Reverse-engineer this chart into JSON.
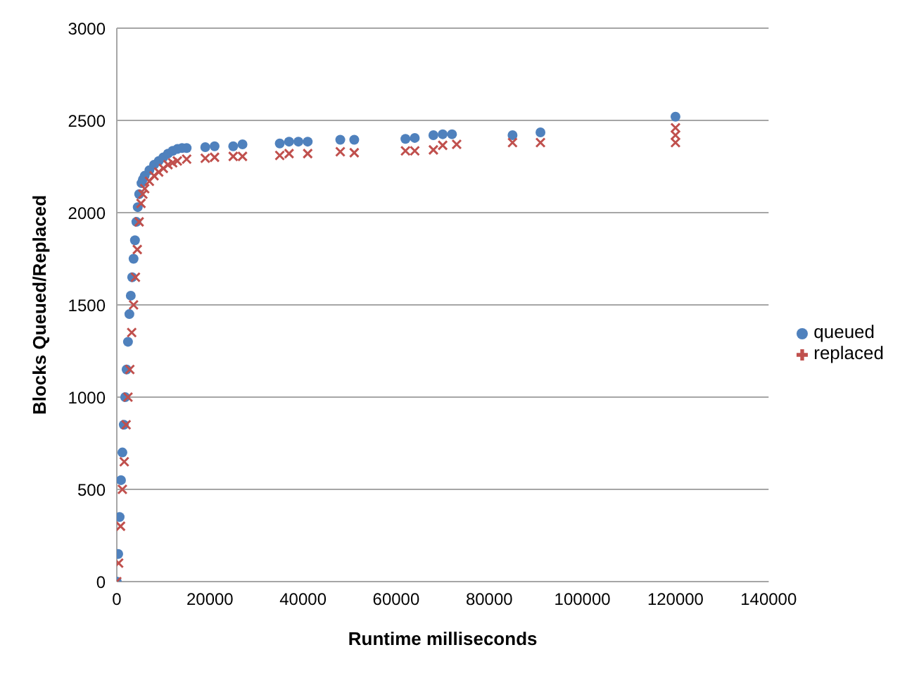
{
  "chart_data": {
    "type": "scatter",
    "xlabel": "Runtime milliseconds",
    "ylabel": "Blocks Queued/Replaced",
    "xlim": [
      0,
      140000
    ],
    "xticks": [
      0,
      20000,
      40000,
      60000,
      80000,
      100000,
      120000,
      140000
    ],
    "ylim": [
      0,
      3000
    ],
    "yticks": [
      0,
      500,
      1000,
      1500,
      2000,
      2500,
      3000
    ],
    "grid": "y",
    "legend": "right",
    "series": [
      {
        "name": "queued",
        "color": "#4f81bd",
        "marker": "circle",
        "x": [
          0,
          300,
          600,
          900,
          1200,
          1500,
          1800,
          2100,
          2400,
          2700,
          3000,
          3300,
          3600,
          3900,
          4200,
          4500,
          4800,
          5300,
          5600,
          6000,
          7000,
          8000,
          9000,
          10000,
          11000,
          12000,
          13000,
          14000,
          15000,
          19000,
          21000,
          25000,
          27000,
          35000,
          37000,
          39000,
          41000,
          48000,
          51000,
          62000,
          64000,
          68000,
          70000,
          72000,
          85000,
          91000,
          120000
        ],
        "values": [
          0,
          150,
          350,
          550,
          700,
          850,
          1000,
          1150,
          1300,
          1450,
          1550,
          1650,
          1750,
          1850,
          1950,
          2030,
          2100,
          2160,
          2180,
          2200,
          2230,
          2260,
          2280,
          2300,
          2320,
          2335,
          2345,
          2350,
          2350,
          2355,
          2360,
          2360,
          2370,
          2375,
          2385,
          2385,
          2385,
          2395,
          2395,
          2400,
          2405,
          2420,
          2425,
          2425,
          2420,
          2435,
          2520
        ]
      },
      {
        "name": "replaced",
        "color": "#c0504d",
        "marker": "cross",
        "x": [
          0,
          400,
          800,
          1200,
          1600,
          2000,
          2400,
          2800,
          3200,
          3600,
          4000,
          4400,
          4800,
          5200,
          5600,
          6000,
          7000,
          8000,
          9000,
          10000,
          11000,
          12000,
          13000,
          15000,
          19000,
          21000,
          25000,
          27000,
          35000,
          37000,
          41000,
          48000,
          51000,
          62000,
          64000,
          68000,
          70000,
          73000,
          85000,
          91000,
          120000,
          120000,
          120000
        ],
        "values": [
          0,
          100,
          300,
          500,
          650,
          850,
          1000,
          1150,
          1350,
          1500,
          1650,
          1800,
          1950,
          2050,
          2100,
          2130,
          2170,
          2200,
          2220,
          2240,
          2260,
          2270,
          2280,
          2290,
          2295,
          2300,
          2305,
          2305,
          2310,
          2320,
          2320,
          2330,
          2325,
          2335,
          2335,
          2340,
          2365,
          2370,
          2380,
          2380,
          2380,
          2420,
          2460
        ]
      }
    ]
  }
}
